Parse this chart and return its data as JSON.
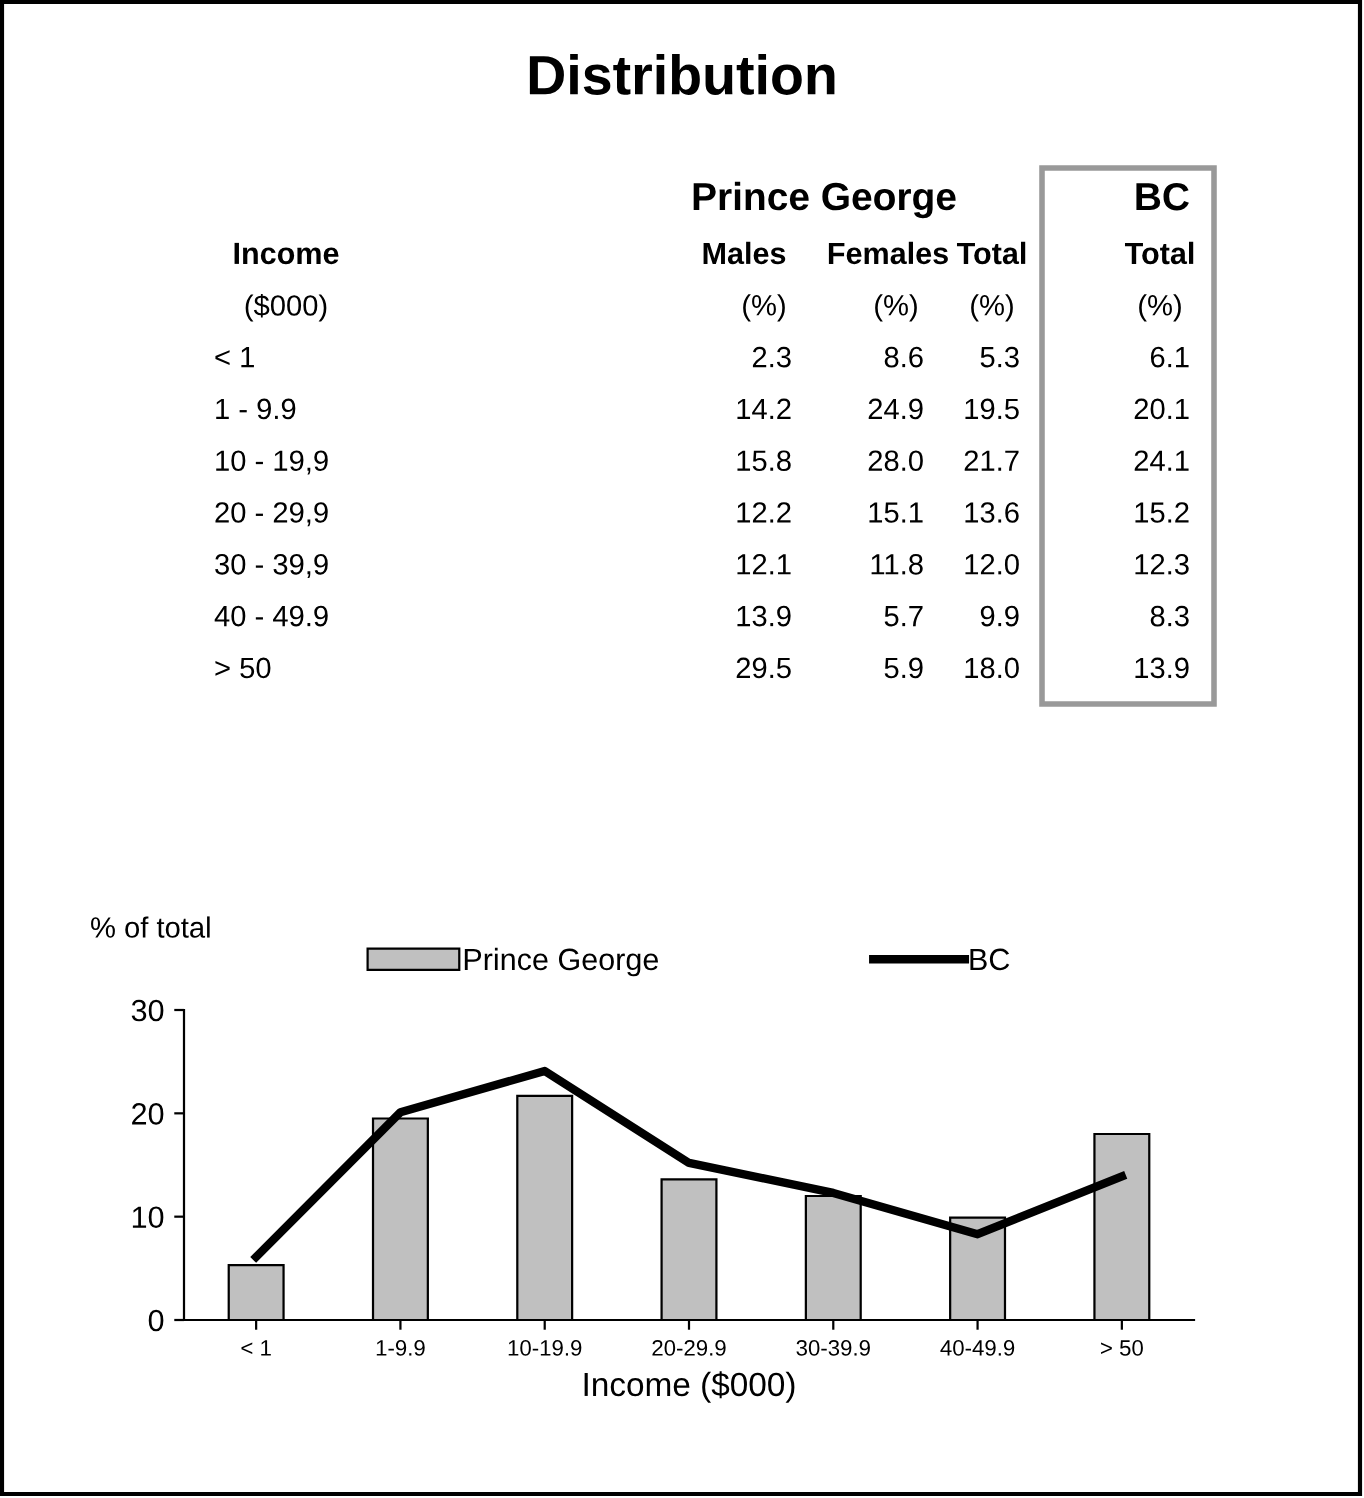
{
  "chart_data": [
    {
      "type": "other",
      "title": "Distribution",
      "annotations": [
        "Prince George",
        "BC",
        "Income",
        "Males",
        "Females",
        "Total",
        "Total",
        "($000)",
        "(%)",
        "(%)",
        "(%)",
        "(%)",
        "< 1",
        "2.3",
        "8.6",
        "5.3",
        "6.1",
        "1 - 9.9",
        "14.2",
        "24.9",
        "19.5",
        "20.1",
        "10 - 19,9",
        "15.8",
        "28.0",
        "21.7",
        "24.1",
        "20 - 29,9",
        "12.2",
        "15.1",
        "13.6",
        "15.2",
        "30 - 39,9",
        "12.1",
        "11.8",
        "12.0",
        "12.3",
        "40 - 49.9",
        "13.9",
        "5.7",
        "9.9",
        "8.3",
        "> 50",
        "29.5",
        "5.9",
        "18.0",
        "13.9"
      ]
    },
    {
      "type": "bar",
      "categories": [
        "< 1",
        "1-9.9",
        "10-19.9",
        "20-29.9",
        "30-39.9",
        "40-49.9",
        "> 50"
      ],
      "series": [
        {
          "name": "Prince George",
          "color": "#c0c0c0",
          "values": [
            5.3,
            19.5,
            21.7,
            13.6,
            12.0,
            9.9,
            18.0
          ]
        },
        {
          "name": "BC",
          "type": "line",
          "color": "#000000",
          "values": [
            6.1,
            20.1,
            24.1,
            15.2,
            12.3,
            8.3,
            13.9
          ]
        }
      ],
      "xlabel": "Income ($000)",
      "ylabel": "% of total",
      "ylim": [
        0,
        30
      ],
      "yticks": [
        0,
        10,
        20,
        30
      ],
      "grid": false,
      "legend": "top",
      "marker": "none"
    }
  ]
}
